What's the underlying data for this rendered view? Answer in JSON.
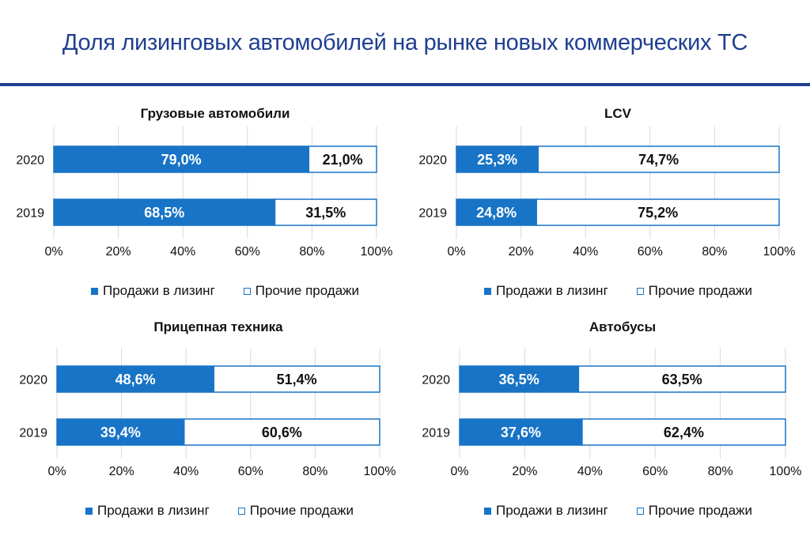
{
  "page": {
    "title": "Доля лизинговых автомобилей на рынке новых коммерческих ТС"
  },
  "colors": {
    "lease": "#1874c6",
    "other": "#ffffff",
    "border": "#1874c6",
    "title": "#1f3f8f"
  },
  "legend": {
    "lease": "Продажи в лизинг",
    "other": "Прочие продажи"
  },
  "chart_data": [
    {
      "type": "bar",
      "orientation": "horizontal",
      "stacked": true,
      "title": "Грузовые автомобили",
      "categories": [
        "2020",
        "2019"
      ],
      "series": [
        {
          "name": "Продажи в лизинг",
          "values": [
            79.0,
            68.5
          ],
          "labels": [
            "79,0%",
            "68,5%"
          ]
        },
        {
          "name": "Прочие продажи",
          "values": [
            21.0,
            31.5
          ],
          "labels": [
            "21,0%",
            "31,5%"
          ]
        }
      ],
      "xlim": [
        0,
        100
      ],
      "xticks": [
        "0%",
        "20%",
        "40%",
        "60%",
        "80%",
        "100%"
      ],
      "legend_position": "bottom",
      "grid": true
    },
    {
      "type": "bar",
      "orientation": "horizontal",
      "stacked": true,
      "title": "LCV",
      "categories": [
        "2020",
        "2019"
      ],
      "series": [
        {
          "name": "Продажи в лизинг",
          "values": [
            25.3,
            24.8
          ],
          "labels": [
            "25,3%",
            "24,8%"
          ]
        },
        {
          "name": "Прочие продажи",
          "values": [
            74.7,
            75.2
          ],
          "labels": [
            "74,7%",
            "75,2%"
          ]
        }
      ],
      "xlim": [
        0,
        100
      ],
      "xticks": [
        "0%",
        "20%",
        "40%",
        "60%",
        "80%",
        "100%"
      ],
      "legend_position": "bottom",
      "grid": true
    },
    {
      "type": "bar",
      "orientation": "horizontal",
      "stacked": true,
      "title": "Прицепная техника",
      "categories": [
        "2020",
        "2019"
      ],
      "series": [
        {
          "name": "Продажи в лизинг",
          "values": [
            48.6,
            39.4
          ],
          "labels": [
            "48,6%",
            "39,4%"
          ]
        },
        {
          "name": "Прочие продажи",
          "values": [
            51.4,
            60.6
          ],
          "labels": [
            "51,4%",
            "60,6%"
          ]
        }
      ],
      "xlim": [
        0,
        100
      ],
      "xticks": [
        "0%",
        "20%",
        "40%",
        "60%",
        "80%",
        "100%"
      ],
      "legend_position": "bottom",
      "grid": true
    },
    {
      "type": "bar",
      "orientation": "horizontal",
      "stacked": true,
      "title": "Автобусы",
      "categories": [
        "2020",
        "2019"
      ],
      "series": [
        {
          "name": "Продажи в лизинг",
          "values": [
            36.5,
            37.6
          ],
          "labels": [
            "36,5%",
            "37,6%"
          ]
        },
        {
          "name": "Прочие продажи",
          "values": [
            63.5,
            62.4
          ],
          "labels": [
            "63,5%",
            "62,4%"
          ]
        }
      ],
      "xlim": [
        0,
        100
      ],
      "xticks": [
        "0%",
        "20%",
        "40%",
        "60%",
        "80%",
        "100%"
      ],
      "legend_position": "bottom",
      "grid": true
    }
  ]
}
